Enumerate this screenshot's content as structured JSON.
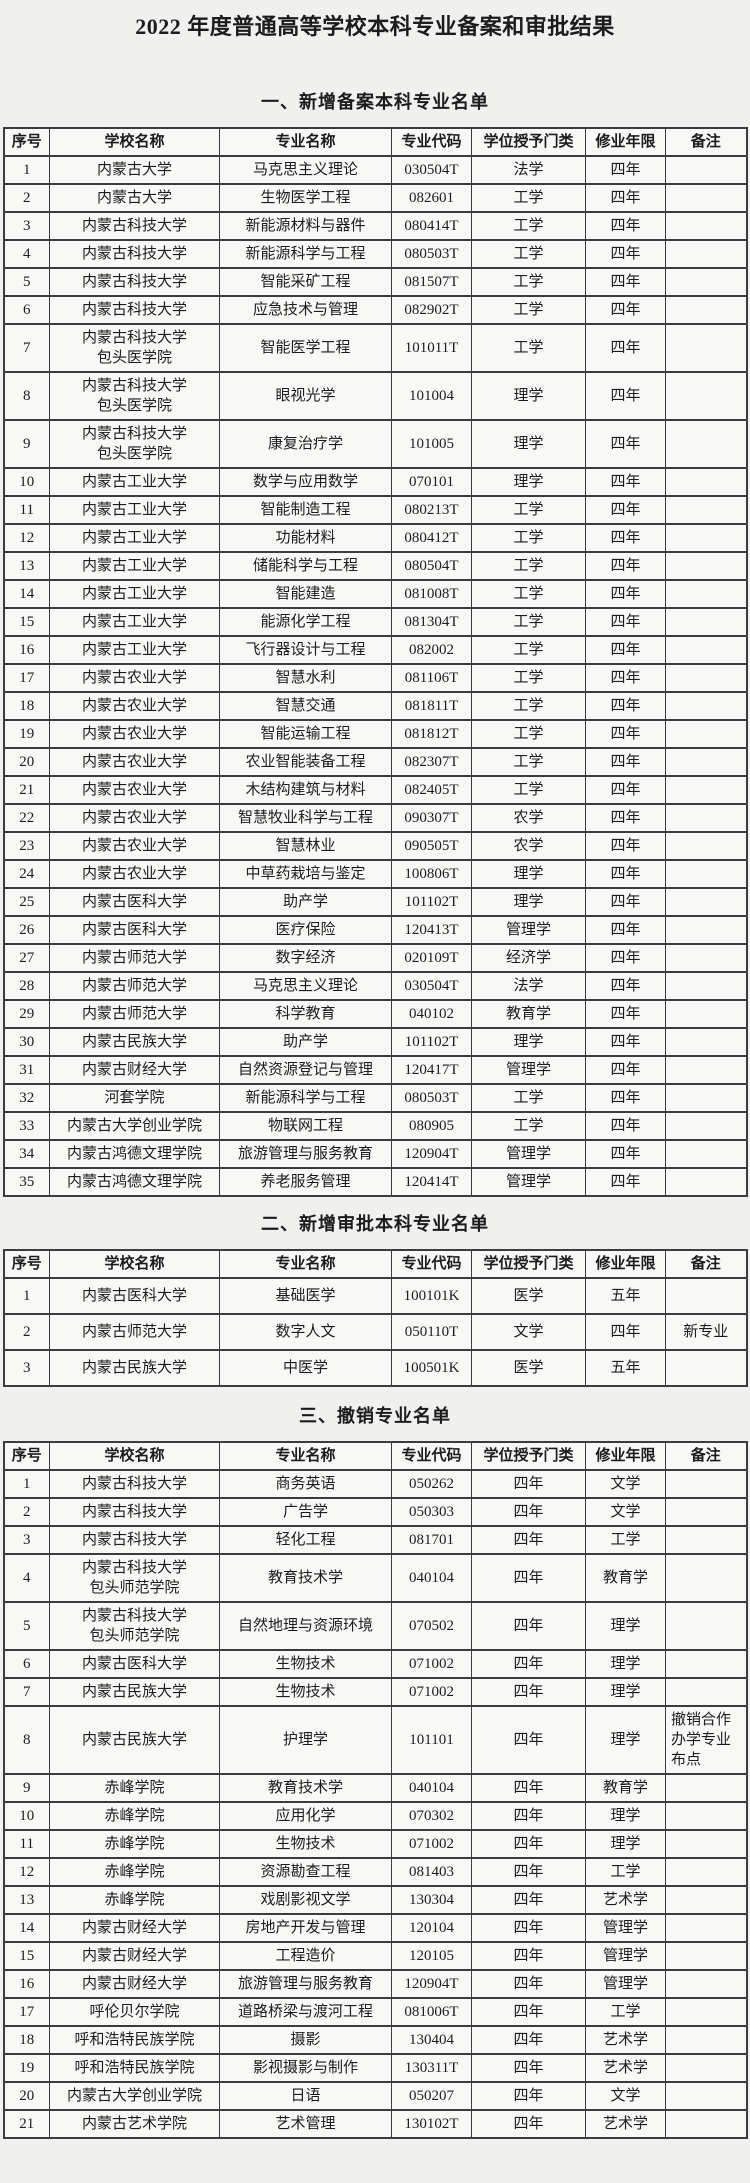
{
  "page": {
    "title": "2022 年度普通高等学校本科专业备案和审批结果"
  },
  "columns": [
    "序号",
    "学校名称",
    "专业名称",
    "专业代码",
    "学位授予门类",
    "修业年限",
    "备注"
  ],
  "sections": [
    {
      "heading": "一、新增备案本科专业名单",
      "rows": [
        [
          "1",
          "内蒙古大学",
          "马克思主义理论",
          "030504T",
          "法学",
          "四年",
          ""
        ],
        [
          "2",
          "内蒙古大学",
          "生物医学工程",
          "082601",
          "工学",
          "四年",
          ""
        ],
        [
          "3",
          "内蒙古科技大学",
          "新能源材料与器件",
          "080414T",
          "工学",
          "四年",
          ""
        ],
        [
          "4",
          "内蒙古科技大学",
          "新能源科学与工程",
          "080503T",
          "工学",
          "四年",
          ""
        ],
        [
          "5",
          "内蒙古科技大学",
          "智能采矿工程",
          "081507T",
          "工学",
          "四年",
          ""
        ],
        [
          "6",
          "内蒙古科技大学",
          "应急技术与管理",
          "082902T",
          "工学",
          "四年",
          ""
        ],
        [
          "7",
          "内蒙古科技大学\n包头医学院",
          "智能医学工程",
          "101011T",
          "工学",
          "四年",
          ""
        ],
        [
          "8",
          "内蒙古科技大学\n包头医学院",
          "眼视光学",
          "101004",
          "理学",
          "四年",
          ""
        ],
        [
          "9",
          "内蒙古科技大学\n包头医学院",
          "康复治疗学",
          "101005",
          "理学",
          "四年",
          ""
        ],
        [
          "10",
          "内蒙古工业大学",
          "数学与应用数学",
          "070101",
          "理学",
          "四年",
          ""
        ],
        [
          "11",
          "内蒙古工业大学",
          "智能制造工程",
          "080213T",
          "工学",
          "四年",
          ""
        ],
        [
          "12",
          "内蒙古工业大学",
          "功能材料",
          "080412T",
          "工学",
          "四年",
          ""
        ],
        [
          "13",
          "内蒙古工业大学",
          "储能科学与工程",
          "080504T",
          "工学",
          "四年",
          ""
        ],
        [
          "14",
          "内蒙古工业大学",
          "智能建造",
          "081008T",
          "工学",
          "四年",
          ""
        ],
        [
          "15",
          "内蒙古工业大学",
          "能源化学工程",
          "081304T",
          "工学",
          "四年",
          ""
        ],
        [
          "16",
          "内蒙古工业大学",
          "飞行器设计与工程",
          "082002",
          "工学",
          "四年",
          ""
        ],
        [
          "17",
          "内蒙古农业大学",
          "智慧水利",
          "081106T",
          "工学",
          "四年",
          ""
        ],
        [
          "18",
          "内蒙古农业大学",
          "智慧交通",
          "081811T",
          "工学",
          "四年",
          ""
        ],
        [
          "19",
          "内蒙古农业大学",
          "智能运输工程",
          "081812T",
          "工学",
          "四年",
          ""
        ],
        [
          "20",
          "内蒙古农业大学",
          "农业智能装备工程",
          "082307T",
          "工学",
          "四年",
          ""
        ],
        [
          "21",
          "内蒙古农业大学",
          "木结构建筑与材料",
          "082405T",
          "工学",
          "四年",
          ""
        ],
        [
          "22",
          "内蒙古农业大学",
          "智慧牧业科学与工程",
          "090307T",
          "农学",
          "四年",
          ""
        ],
        [
          "23",
          "内蒙古农业大学",
          "智慧林业",
          "090505T",
          "农学",
          "四年",
          ""
        ],
        [
          "24",
          "内蒙古农业大学",
          "中草药栽培与鉴定",
          "100806T",
          "理学",
          "四年",
          ""
        ],
        [
          "25",
          "内蒙古医科大学",
          "助产学",
          "101102T",
          "理学",
          "四年",
          ""
        ],
        [
          "26",
          "内蒙古医科大学",
          "医疗保险",
          "120413T",
          "管理学",
          "四年",
          ""
        ],
        [
          "27",
          "内蒙古师范大学",
          "数字经济",
          "020109T",
          "经济学",
          "四年",
          ""
        ],
        [
          "28",
          "内蒙古师范大学",
          "马克思主义理论",
          "030504T",
          "法学",
          "四年",
          ""
        ],
        [
          "29",
          "内蒙古师范大学",
          "科学教育",
          "040102",
          "教育学",
          "四年",
          ""
        ],
        [
          "30",
          "内蒙古民族大学",
          "助产学",
          "101102T",
          "理学",
          "四年",
          ""
        ],
        [
          "31",
          "内蒙古财经大学",
          "自然资源登记与管理",
          "120417T",
          "管理学",
          "四年",
          ""
        ],
        [
          "32",
          "河套学院",
          "新能源科学与工程",
          "080503T",
          "工学",
          "四年",
          ""
        ],
        [
          "33",
          "内蒙古大学创业学院",
          "物联网工程",
          "080905",
          "工学",
          "四年",
          ""
        ],
        [
          "34",
          "内蒙古鸿德文理学院",
          "旅游管理与服务教育",
          "120904T",
          "管理学",
          "四年",
          ""
        ],
        [
          "35",
          "内蒙古鸿德文理学院",
          "养老服务管理",
          "120414T",
          "管理学",
          "四年",
          ""
        ]
      ]
    },
    {
      "heading": "二、新增审批本科专业名单",
      "rows": [
        [
          "1",
          "内蒙古医科大学",
          "基础医学",
          "100101K",
          "医学",
          "五年",
          ""
        ],
        [
          "2",
          "内蒙古师范大学",
          "数字人文",
          "050110T",
          "文学",
          "四年",
          "新专业"
        ],
        [
          "3",
          "内蒙古民族大学",
          "中医学",
          "100501K",
          "医学",
          "五年",
          ""
        ]
      ]
    },
    {
      "heading": "三、撤销专业名单",
      "rows": [
        [
          "1",
          "内蒙古科技大学",
          "商务英语",
          "050262",
          "四年",
          "文学",
          ""
        ],
        [
          "2",
          "内蒙古科技大学",
          "广告学",
          "050303",
          "四年",
          "文学",
          ""
        ],
        [
          "3",
          "内蒙古科技大学",
          "轻化工程",
          "081701",
          "四年",
          "工学",
          ""
        ],
        [
          "4",
          "内蒙古科技大学\n包头师范学院",
          "教育技术学",
          "040104",
          "四年",
          "教育学",
          ""
        ],
        [
          "5",
          "内蒙古科技大学\n包头师范学院",
          "自然地理与资源环境",
          "070502",
          "四年",
          "理学",
          ""
        ],
        [
          "6",
          "内蒙古医科大学",
          "生物技术",
          "071002",
          "四年",
          "理学",
          ""
        ],
        [
          "7",
          "内蒙古民族大学",
          "生物技术",
          "071002",
          "四年",
          "理学",
          ""
        ],
        [
          "8",
          "内蒙古民族大学",
          "护理学",
          "101101",
          "四年",
          "理学",
          "撤销合作\n办学专业\n布点"
        ],
        [
          "9",
          "赤峰学院",
          "教育技术学",
          "040104",
          "四年",
          "教育学",
          ""
        ],
        [
          "10",
          "赤峰学院",
          "应用化学",
          "070302",
          "四年",
          "理学",
          ""
        ],
        [
          "11",
          "赤峰学院",
          "生物技术",
          "071002",
          "四年",
          "理学",
          ""
        ],
        [
          "12",
          "赤峰学院",
          "资源勘查工程",
          "081403",
          "四年",
          "工学",
          ""
        ],
        [
          "13",
          "赤峰学院",
          "戏剧影视文学",
          "130304",
          "四年",
          "艺术学",
          ""
        ],
        [
          "14",
          "内蒙古财经大学",
          "房地产开发与管理",
          "120104",
          "四年",
          "管理学",
          ""
        ],
        [
          "15",
          "内蒙古财经大学",
          "工程造价",
          "120105",
          "四年",
          "管理学",
          ""
        ],
        [
          "16",
          "内蒙古财经大学",
          "旅游管理与服务教育",
          "120904T",
          "四年",
          "管理学",
          ""
        ],
        [
          "17",
          "呼伦贝尔学院",
          "道路桥梁与渡河工程",
          "081006T",
          "四年",
          "工学",
          ""
        ],
        [
          "18",
          "呼和浩特民族学院",
          "摄影",
          "130404",
          "四年",
          "艺术学",
          ""
        ],
        [
          "19",
          "呼和浩特民族学院",
          "影视摄影与制作",
          "130311T",
          "四年",
          "艺术学",
          ""
        ],
        [
          "20",
          "内蒙古大学创业学院",
          "日语",
          "050207",
          "四年",
          "文学",
          ""
        ],
        [
          "21",
          "内蒙古艺术学院",
          "艺术管理",
          "130102T",
          "四年",
          "艺术学",
          ""
        ]
      ]
    }
  ]
}
